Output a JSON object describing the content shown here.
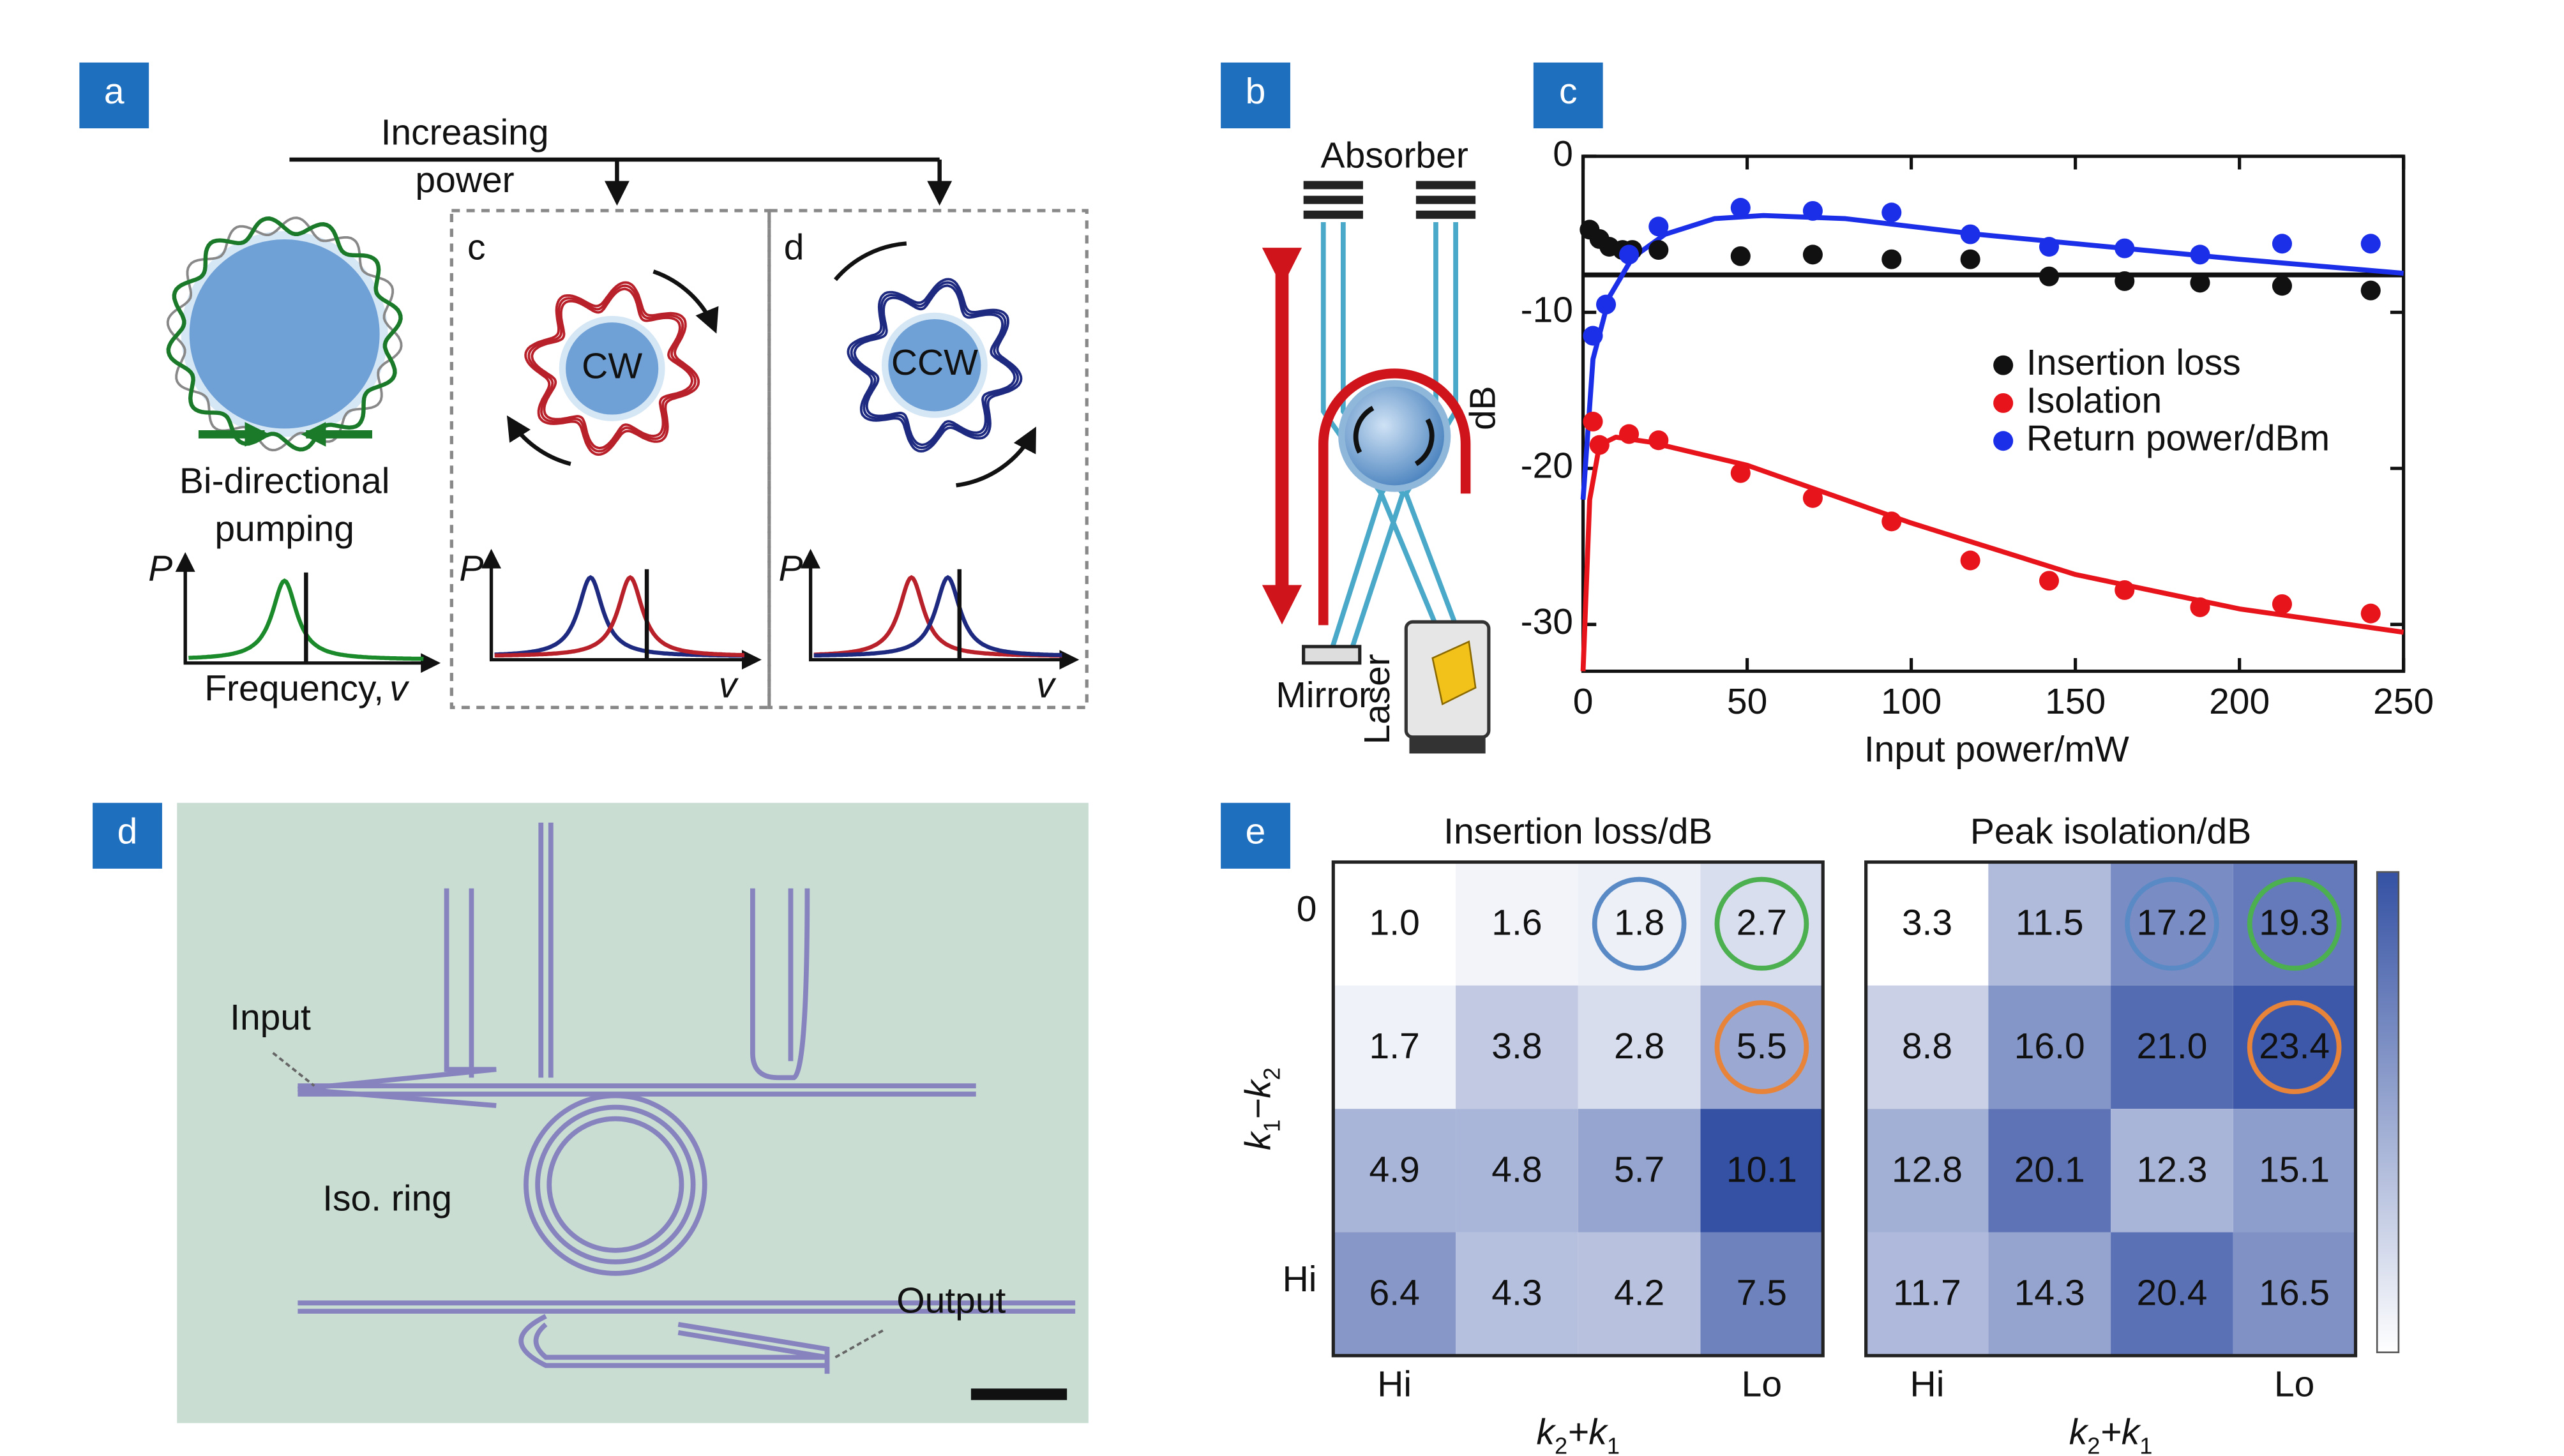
{
  "diagram": {
    "a": {
      "tag": "a",
      "arrow_label": [
        "Increasing",
        "power"
      ],
      "pumping_label": [
        "Bi-directional",
        "pumping"
      ],
      "insets": [
        "c",
        "d"
      ],
      "ring_labels": [
        "CW",
        "CCW"
      ],
      "y_axis": "P",
      "x_axis": "Frequency,",
      "x_symbol": "v"
    },
    "b": {
      "tag": "b",
      "absorber": "Absorber",
      "mirror": "Mirror",
      "laser": "Laser"
    },
    "d": {
      "tag": "d",
      "input": "Input",
      "ring": "Iso. ring",
      "output": "Output"
    }
  },
  "chart_data": [
    {
      "type": "scatter",
      "tag": "c",
      "xlabel": "Input power/mW",
      "ylabel": "dB",
      "xlim": [
        0,
        250
      ],
      "ylim": [
        -33,
        0
      ],
      "xticks": [
        0,
        50,
        100,
        150,
        200,
        250
      ],
      "yticks": [
        0,
        -10,
        -20,
        -30
      ],
      "series": [
        {
          "name": "Insertion loss",
          "color": "#111111",
          "x": [
            2,
            5,
            8,
            12,
            15,
            23,
            48,
            70,
            94,
            118,
            142,
            165,
            188,
            213,
            240
          ],
          "values": [
            -4.7,
            -5.3,
            -5.8,
            -6.0,
            -6.0,
            -6.0,
            -6.4,
            -6.3,
            -6.6,
            -6.6,
            -7.7,
            -8.0,
            -8.1,
            -8.3,
            -8.6
          ]
        },
        {
          "name": "Isolation",
          "color": "#e8141c",
          "x": [
            3,
            5,
            14,
            23,
            48,
            70,
            94,
            118,
            142,
            165,
            188,
            213,
            240
          ],
          "values": [
            -17.0,
            -18.5,
            -17.8,
            -18.2,
            -20.3,
            -21.9,
            -23.4,
            -25.9,
            -27.2,
            -27.8,
            -28.9,
            -28.7,
            -29.3
          ]
        },
        {
          "name": "Return power/dBm",
          "color": "#1b2ee8",
          "x": [
            3,
            7,
            14,
            23,
            48,
            70,
            94,
            118,
            142,
            165,
            188,
            213,
            240
          ],
          "values": [
            -11.5,
            -9.5,
            -6.3,
            -4.5,
            -3.3,
            -3.5,
            -3.6,
            -5.0,
            -5.8,
            -5.9,
            -6.3,
            -5.6,
            -5.6
          ]
        }
      ],
      "fits": [
        {
          "color": "#111111",
          "x": [
            0,
            250
          ],
          "values": [
            -7.6,
            -7.6
          ]
        },
        {
          "color": "#e8141c",
          "x": [
            0,
            2,
            5,
            10,
            20,
            50,
            100,
            150,
            200,
            250
          ],
          "values": [
            -33,
            -22,
            -18.5,
            -18,
            -18.3,
            -19.8,
            -23.5,
            -26.8,
            -29,
            -30.5
          ]
        },
        {
          "color": "#1b2ee8",
          "x": [
            0,
            3,
            8,
            15,
            25,
            40,
            55,
            80,
            120,
            160,
            200,
            250
          ],
          "values": [
            -22,
            -13,
            -9,
            -6.5,
            -5,
            -4,
            -3.8,
            -4,
            -5,
            -5.8,
            -6.6,
            -7.5
          ]
        }
      ]
    },
    {
      "type": "heatmap",
      "tag": "e",
      "title": "Insertion loss/dB",
      "values": [
        [
          1.0,
          1.6,
          1.8,
          2.7
        ],
        [
          1.7,
          3.8,
          2.8,
          5.5
        ],
        [
          4.9,
          4.8,
          5.7,
          10.1
        ],
        [
          6.4,
          4.3,
          4.2,
          7.5
        ]
      ],
      "value_labels": [
        [
          "1.0",
          "1.6",
          "1.8",
          "2.7"
        ],
        [
          "1.7",
          "3.8",
          "2.8",
          "5.5"
        ],
        [
          "4.9",
          "4.8",
          "5.7",
          "10.1"
        ],
        [
          "6.4",
          "4.3",
          "4.2",
          "7.5"
        ]
      ],
      "ylabels": [
        "0",
        null,
        null,
        "Hi"
      ],
      "xlabels": [
        "Hi",
        null,
        null,
        "Lo"
      ],
      "ylabel": [
        "k",
        "1",
        "−k",
        "2"
      ],
      "xlabel": [
        "k",
        "2",
        "+k",
        "1"
      ],
      "colors": [
        "#ffffff",
        "#3451a3"
      ],
      "ring_colors": [
        [
          null,
          null,
          "#5a8ac6",
          "#4caf50"
        ],
        [
          null,
          null,
          null,
          "#e8843a"
        ],
        [
          null,
          null,
          null,
          null
        ],
        [
          null,
          null,
          null,
          null
        ]
      ]
    },
    {
      "type": "heatmap",
      "title": "Peak isolation/dB",
      "values": [
        [
          3.3,
          11.5,
          17.2,
          19.3
        ],
        [
          8.8,
          16.0,
          21.0,
          23.4
        ],
        [
          12.8,
          20.1,
          12.3,
          15.1
        ],
        [
          11.7,
          14.3,
          20.4,
          16.5
        ]
      ],
      "value_labels": [
        [
          "3.3",
          "11.5",
          "17.2",
          "19.3"
        ],
        [
          "8.8",
          "16.0",
          "21.0",
          "23.4"
        ],
        [
          "12.8",
          "20.1",
          "12.3",
          "15.1"
        ],
        [
          "11.7",
          "14.3",
          "20.4",
          "16.5"
        ]
      ],
      "xlabels": [
        "Hi",
        null,
        null,
        "Lo"
      ],
      "xlabel": [
        "k",
        "2",
        "+k",
        "1"
      ],
      "colors": [
        "#ffffff",
        "#3d58a8"
      ],
      "ring_colors": [
        [
          null,
          null,
          "#5a8ac6",
          "#4caf50"
        ],
        [
          null,
          null,
          null,
          "#e8843a"
        ],
        [
          null,
          null,
          null,
          null
        ],
        [
          null,
          null,
          null,
          null
        ]
      ]
    }
  ]
}
